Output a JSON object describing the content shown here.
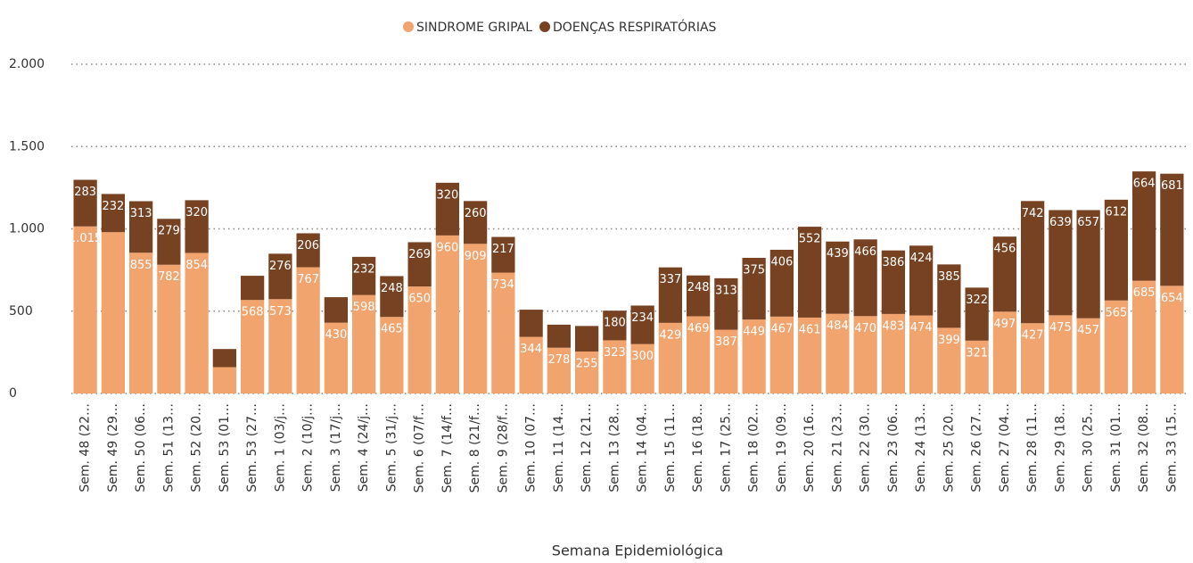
{
  "chart_data": {
    "type": "stacked_bar",
    "x_label": "Semana Epidemiológica",
    "categories": [
      "Sem. 48 (22…",
      "Sem. 49 (29…",
      "Sem. 50 (06…",
      "Sem. 51 (13…",
      "Sem. 52 (20…",
      "Sem. 53 (01…",
      "Sem. 53 (27…",
      "Sem. 1 (03/j…",
      "Sem. 2 (10/j…",
      "Sem. 3 (17/j…",
      "Sem. 4 (24/j…",
      "Sem. 5 (31/j…",
      "Sem. 6 (07/f…",
      "Sem. 7 (14/f…",
      "Sem. 8 (21/f…",
      "Sem. 9 (28/f…",
      "Sem. 10 (07…",
      "Sem. 11 (14…",
      "Sem. 12 (21…",
      "Sem. 13 (28…",
      "Sem. 14 (04…",
      "Sem. 15 (11…",
      "Sem. 16 (18…",
      "Sem. 17 (25…",
      "Sem. 18 (02…",
      "Sem. 19 (09…",
      "Sem. 20 (16…",
      "Sem. 21 (23…",
      "Sem. 22 (30…",
      "Sem. 23 (06…",
      "Sem. 24 (13…",
      "Sem. 25 (20…",
      "Sem. 26 (27…",
      "Sem. 27 (04…",
      "Sem. 28 (11…",
      "Sem. 29 (18…",
      "Sem. 30 (25…",
      "Sem. 31 (01…",
      "Sem. 32 (08…",
      "Sem. 33 (15…"
    ],
    "series": [
      {
        "name": "SINDROME GRIPAL",
        "color": "#f2a46e",
        "values": [
          1015,
          980,
          855,
          782,
          854,
          160,
          568,
          573,
          767,
          430,
          598,
          465,
          650,
          960,
          909,
          734,
          344,
          278,
          255,
          323,
          300,
          429,
          469,
          387,
          449,
          467,
          461,
          484,
          470,
          483,
          474,
          399,
          321,
          497,
          427,
          475,
          457,
          565,
          685,
          654
        ],
        "value_labels": [
          "1.015",
          null,
          "855",
          "782",
          "854",
          null,
          "568",
          "573",
          "767",
          "430",
          "598",
          "465",
          "650",
          "960",
          "909",
          "734",
          "344",
          "278",
          "255",
          "323",
          "300",
          "429",
          "469",
          "387",
          "449",
          "467",
          "461",
          "484",
          "470",
          "483",
          "474",
          "399",
          "321",
          "497",
          "427",
          "475",
          "457",
          "565",
          "685",
          "654"
        ]
      },
      {
        "name": "DOENÇAS RESPIRATÓRIAS",
        "color": "#774222",
        "values": [
          283,
          232,
          313,
          279,
          320,
          110,
          147,
          276,
          206,
          155,
          232,
          248,
          269,
          320,
          260,
          217,
          165,
          140,
          155,
          180,
          234,
          337,
          248,
          313,
          375,
          406,
          552,
          439,
          466,
          386,
          424,
          385,
          322,
          456,
          742,
          639,
          657,
          612,
          664,
          681
        ],
        "value_labels": [
          "283",
          "232",
          "313",
          "279",
          "320",
          null,
          null,
          "276",
          "206",
          null,
          "232",
          "248",
          "269",
          "320",
          "260",
          "217",
          null,
          null,
          null,
          "180",
          "234",
          "337",
          "248",
          "313",
          "375",
          "406",
          "552",
          "439",
          "466",
          "386",
          "424",
          "385",
          "322",
          "456",
          "742",
          "639",
          "657",
          "612",
          "664",
          "681"
        ]
      }
    ],
    "ylim": [
      0,
      2000
    ],
    "yticks": [
      0,
      500,
      {
        "value": 1000,
        "label": "1.000"
      },
      {
        "value": 1500,
        "label": "1.500"
      },
      {
        "value": 2000,
        "label": "2.000"
      }
    ],
    "grid": true,
    "legend": "top"
  }
}
